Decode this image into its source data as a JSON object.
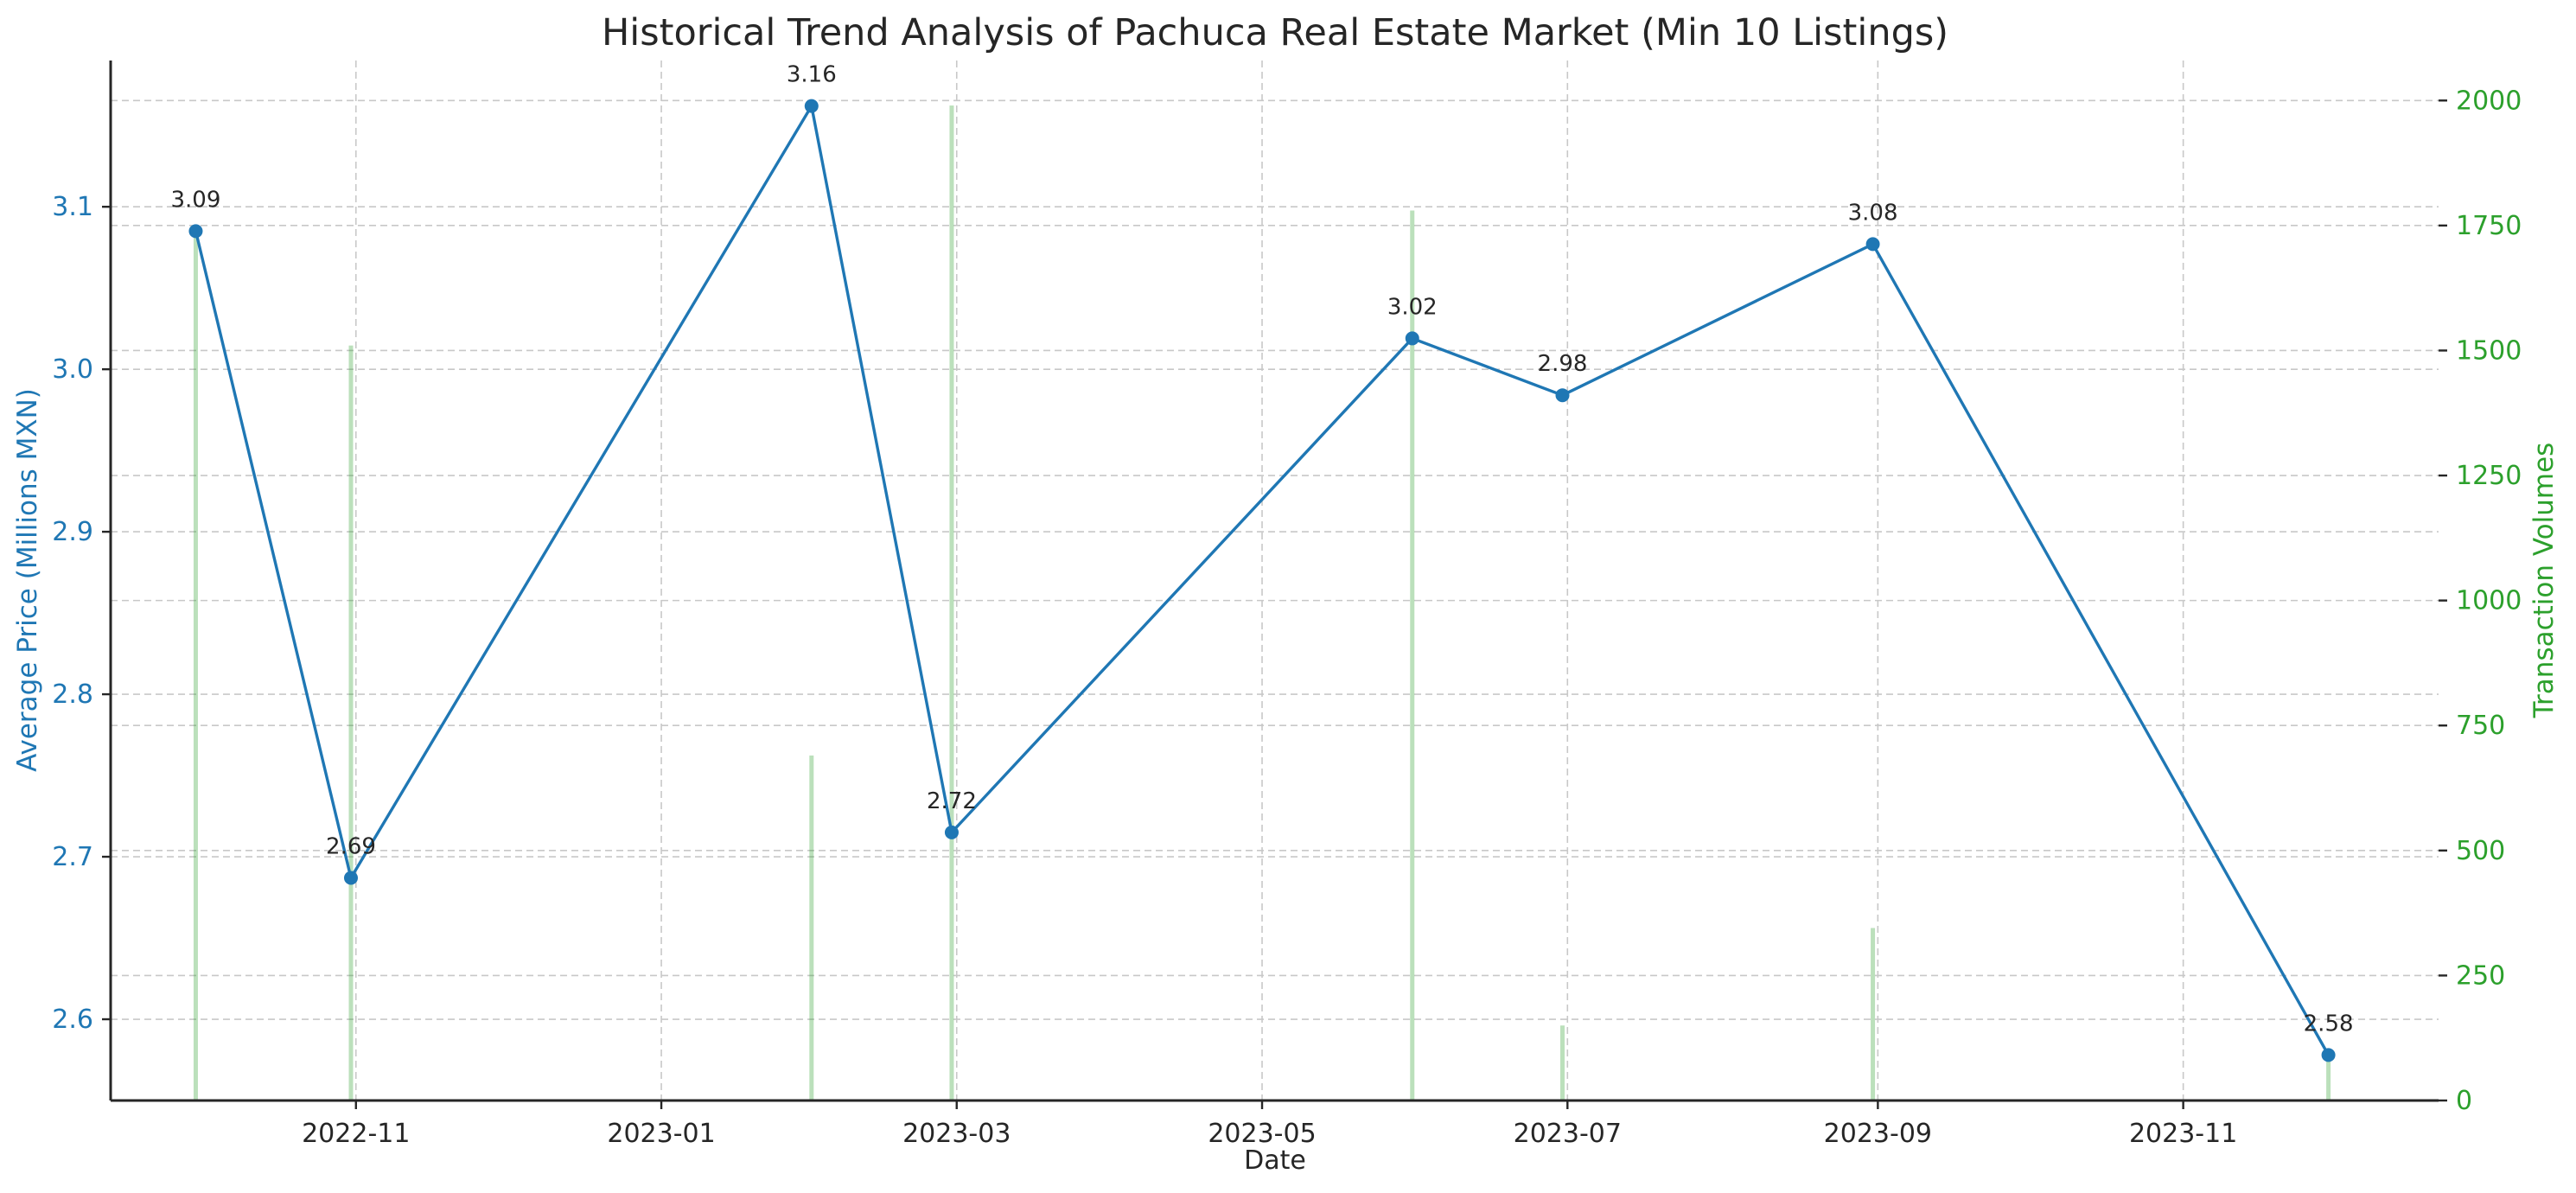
{
  "chart_data": {
    "type": "line",
    "title": "Historical Trend Analysis of Pachuca Real Estate Market (Min 10 Listings)",
    "xlabel": "Date",
    "ylabel": "Average Price (Millions MXN)",
    "y2label": "Transaction Volumes",
    "x_ticks": [
      "2022-11",
      "2023-01",
      "2023-03",
      "2023-05",
      "2023-07",
      "2023-09",
      "2023-11"
    ],
    "y_ticks": [
      "2.6",
      "2.7",
      "2.8",
      "2.9",
      "3.0",
      "3.1"
    ],
    "y2_ticks": [
      "0",
      "250",
      "500",
      "750",
      "1000",
      "1250",
      "1500",
      "1750",
      "2000"
    ],
    "x_range": [
      "2022-09-13",
      "2023-12-22"
    ],
    "ylim": [
      2.55,
      3.19
    ],
    "y2lim": [
      0,
      2080
    ],
    "grid": true,
    "colors": {
      "price": "#1f77b4",
      "volume": "#2ca02c",
      "text": "#262626"
    },
    "series": [
      {
        "role": "price",
        "axis": "left",
        "x": [
          "2022-09-30",
          "2022-10-31",
          "2023-01-31",
          "2023-02-28",
          "2023-05-31",
          "2023-06-30",
          "2023-08-31",
          "2023-11-30"
        ],
        "values": [
          3.085,
          2.687,
          3.162,
          2.715,
          3.019,
          2.984,
          3.077,
          2.578
        ],
        "labels": [
          "3.09",
          "2.69",
          "3.16",
          "2.72",
          "3.02",
          "2.98",
          "3.08",
          "2.58"
        ]
      },
      {
        "role": "volume",
        "axis": "right",
        "type": "bar",
        "x": [
          "2022-09-30",
          "2022-10-31",
          "2023-01-31",
          "2023-02-28",
          "2023-05-31",
          "2023-06-30",
          "2023-08-31",
          "2023-11-30"
        ],
        "values": [
          1750,
          1510,
          690,
          1990,
          1780,
          150,
          345,
          80
        ]
      }
    ]
  }
}
